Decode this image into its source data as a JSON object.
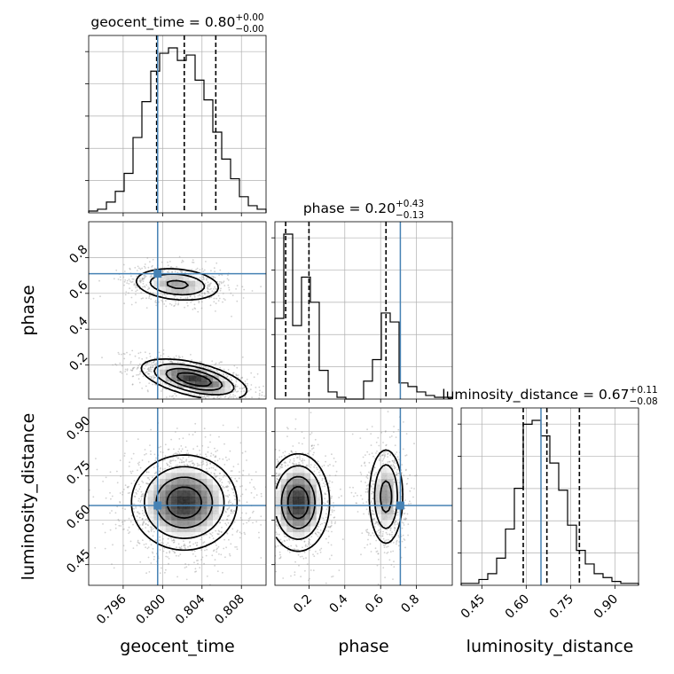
{
  "chart_data": {
    "type": "corner",
    "parameters": [
      {
        "name": "geocent_time",
        "axis_label": "geocent_time",
        "title": "geocent_time = 0.80",
        "title_sup": "+0.00",
        "title_sub": "−0.00",
        "range": [
          0.7925,
          0.8105
        ],
        "ticks": [
          0.796,
          0.8,
          0.804,
          0.808
        ],
        "tick_labels": [
          "0.796",
          "0.800",
          "0.804",
          "0.808"
        ],
        "truth": 0.7995,
        "quantiles": [
          0.7994,
          0.8022,
          0.8054
        ],
        "hist": {
          "start": 0.7925,
          "bin_width": 0.0009,
          "counts": [
            1,
            2,
            6,
            12,
            22,
            42,
            62,
            79,
            89,
            92,
            85,
            88,
            74,
            63,
            45,
            30,
            19,
            9,
            4,
            2
          ]
        }
      },
      {
        "name": "phase",
        "axis_label": "phase",
        "title": "phase = 0.20",
        "title_sup": "+0.43",
        "title_sub": "−0.13",
        "range": [
          0.01,
          1.0
        ],
        "ticks": [
          0.2,
          0.4,
          0.6,
          0.8
        ],
        "tick_labels": [
          "0.2",
          "0.4",
          "0.6",
          "0.8"
        ],
        "truth": 0.71,
        "quantiles": [
          0.07,
          0.2,
          0.63
        ],
        "hist": {
          "start": 0.01,
          "bin_width": 0.0495,
          "counts": [
            45,
            92,
            41,
            68,
            54,
            16,
            4,
            1,
            0,
            0,
            10,
            22,
            48,
            43,
            9,
            7,
            4,
            2,
            1,
            1
          ]
        }
      },
      {
        "name": "luminosity_distance",
        "axis_label": "luminosity_distance",
        "title": "luminosity_distance = 0.67",
        "title_sup": "+0.11",
        "title_sub": "−0.08",
        "range": [
          0.38,
          0.98
        ],
        "ticks": [
          0.45,
          0.6,
          0.75,
          0.9
        ],
        "tick_labels": [
          "0.45",
          "0.60",
          "0.75",
          "0.90"
        ],
        "truth": 0.65,
        "quantiles": [
          0.59,
          0.67,
          0.78
        ],
        "hist": {
          "start": 0.38,
          "bin_width": 0.03,
          "counts": [
            1,
            1,
            3,
            6,
            14,
            29,
            50,
            83,
            85,
            77,
            63,
            49,
            31,
            18,
            11,
            6,
            4,
            2,
            1,
            1
          ]
        }
      }
    ],
    "panels_2d": [
      {
        "x": "geocent_time",
        "y": "phase",
        "blobs": [
          {
            "cx": 0.8032,
            "cy": 0.12,
            "sx": 0.0026,
            "sy": 0.055,
            "rho": -0.55,
            "w": 0.62
          },
          {
            "cx": 0.8015,
            "cy": 0.65,
            "sx": 0.0023,
            "sy": 0.048,
            "rho": -0.2,
            "w": 0.38
          }
        ]
      },
      {
        "x": "geocent_time",
        "y": "luminosity_distance",
        "blobs": [
          {
            "cx": 0.8022,
            "cy": 0.66,
            "sx": 0.0026,
            "sy": 0.078,
            "rho": 0.0,
            "w": 1.0
          }
        ]
      },
      {
        "x": "phase",
        "y": "luminosity_distance",
        "blobs": [
          {
            "cx": 0.14,
            "cy": 0.66,
            "sx": 0.085,
            "sy": 0.08,
            "rho": 0.0,
            "w": 0.6
          },
          {
            "cx": 0.63,
            "cy": 0.68,
            "sx": 0.05,
            "sy": 0.085,
            "rho": 0.0,
            "w": 0.4
          }
        ]
      }
    ],
    "grid": true,
    "truth_color": "#4682b4",
    "line_color": "#000000",
    "scatter_color": "#9a9a9a",
    "grid_color": "#b0b0b0"
  }
}
